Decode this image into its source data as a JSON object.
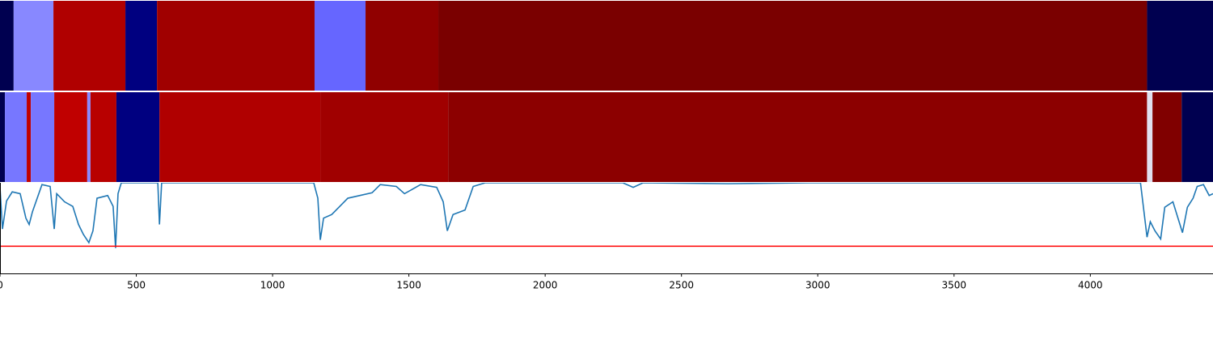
{
  "chart_data": [
    {
      "type": "strip",
      "bins": [
        0,
        50,
        196,
        460,
        576,
        1154,
        1341,
        1608,
        4208,
        4450
      ],
      "colors": [
        "#000050",
        "#8888ff",
        "#b00000",
        "#000080",
        "#a00000",
        "#6666ff",
        "#900000",
        "#7a0000",
        "#000050"
      ],
      "xlim": [
        0,
        4450
      ]
    },
    {
      "type": "strip",
      "bins": [
        0,
        18,
        98,
        113,
        199,
        320,
        332,
        427,
        585,
        1175,
        1644,
        4208,
        4228,
        4335,
        4450
      ],
      "colors": [
        "#000050",
        "#7777ff",
        "#c00000",
        "#7777ff",
        "#c00000",
        "#8888ff",
        "#b80000",
        "#000080",
        "#b00000",
        "#a00000",
        "#8c0000",
        "#e0e0f0",
        "#800000",
        "#000050"
      ],
      "xlim": [
        0,
        4450
      ]
    },
    {
      "type": "line",
      "x": [
        0,
        9,
        24,
        45,
        74,
        95,
        107,
        119,
        154,
        184,
        199,
        208,
        237,
        267,
        288,
        306,
        326,
        341,
        356,
        395,
        415,
        424,
        433,
        445,
        579,
        585,
        593,
        1151,
        1166,
        1175,
        1187,
        1217,
        1276,
        1365,
        1395,
        1454,
        1484,
        1543,
        1602,
        1626,
        1641,
        1662,
        1706,
        1736,
        1780,
        2285,
        2323,
        2359,
        2671,
        2967,
        4184,
        4196,
        4208,
        4220,
        4237,
        4258,
        4273,
        4303,
        4338,
        4356,
        4377,
        4392,
        4415,
        4436,
        4450
      ],
      "series": [
        {
          "color": "#1f77b4",
          "values": [
            0.95,
            0.49,
            0.8,
            0.9,
            0.88,
            0.61,
            0.54,
            0.68,
            0.98,
            0.96,
            0.49,
            0.88,
            0.79,
            0.74,
            0.54,
            0.43,
            0.34,
            0.47,
            0.83,
            0.86,
            0.74,
            0.28,
            0.88,
            1.0,
            1.0,
            0.54,
            1.0,
            1.0,
            0.83,
            0.37,
            0.61,
            0.65,
            0.83,
            0.89,
            0.98,
            0.96,
            0.88,
            0.98,
            0.95,
            0.79,
            0.47,
            0.65,
            0.7,
            0.96,
            1.0,
            1.0,
            0.95,
            1.0,
            0.99,
            1.0,
            1.0,
            0.7,
            0.4,
            0.57,
            0.47,
            0.38,
            0.73,
            0.79,
            0.45,
            0.73,
            0.83,
            0.96,
            0.98,
            0.86,
            0.88
          ]
        }
      ],
      "hline": {
        "value": 0.3,
        "color": "#ff0000"
      },
      "xlim": [
        0,
        4450
      ],
      "ylim": [
        0,
        1
      ],
      "xticks": [
        0,
        500,
        1000,
        1500,
        2000,
        2500,
        3000,
        3500,
        4000
      ]
    }
  ]
}
